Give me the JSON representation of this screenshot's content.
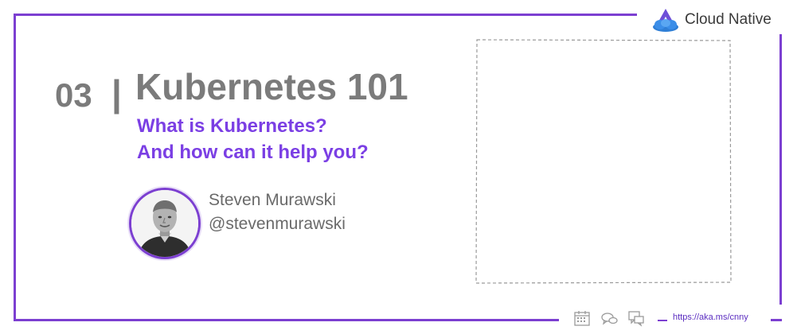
{
  "brand": {
    "name": "Cloud Native",
    "icon": "cloud-native-logo"
  },
  "section": {
    "number": "03",
    "separator": "|"
  },
  "title": "Kubernetes 101",
  "subtitle": {
    "line1": "What is Kubernetes?",
    "line2": "And how can it help you?"
  },
  "speaker": {
    "name": "Steven Murawski",
    "handle": "@stevenmurawski"
  },
  "footer": {
    "icons": [
      "calendar-icon",
      "chat-bubbles-icon",
      "comments-icon"
    ],
    "link": "https://aka.ms/cnny"
  },
  "colors": {
    "accent": "#7c3fd1",
    "title_gray": "#7b7b7b",
    "link": "#5b2dc0"
  }
}
